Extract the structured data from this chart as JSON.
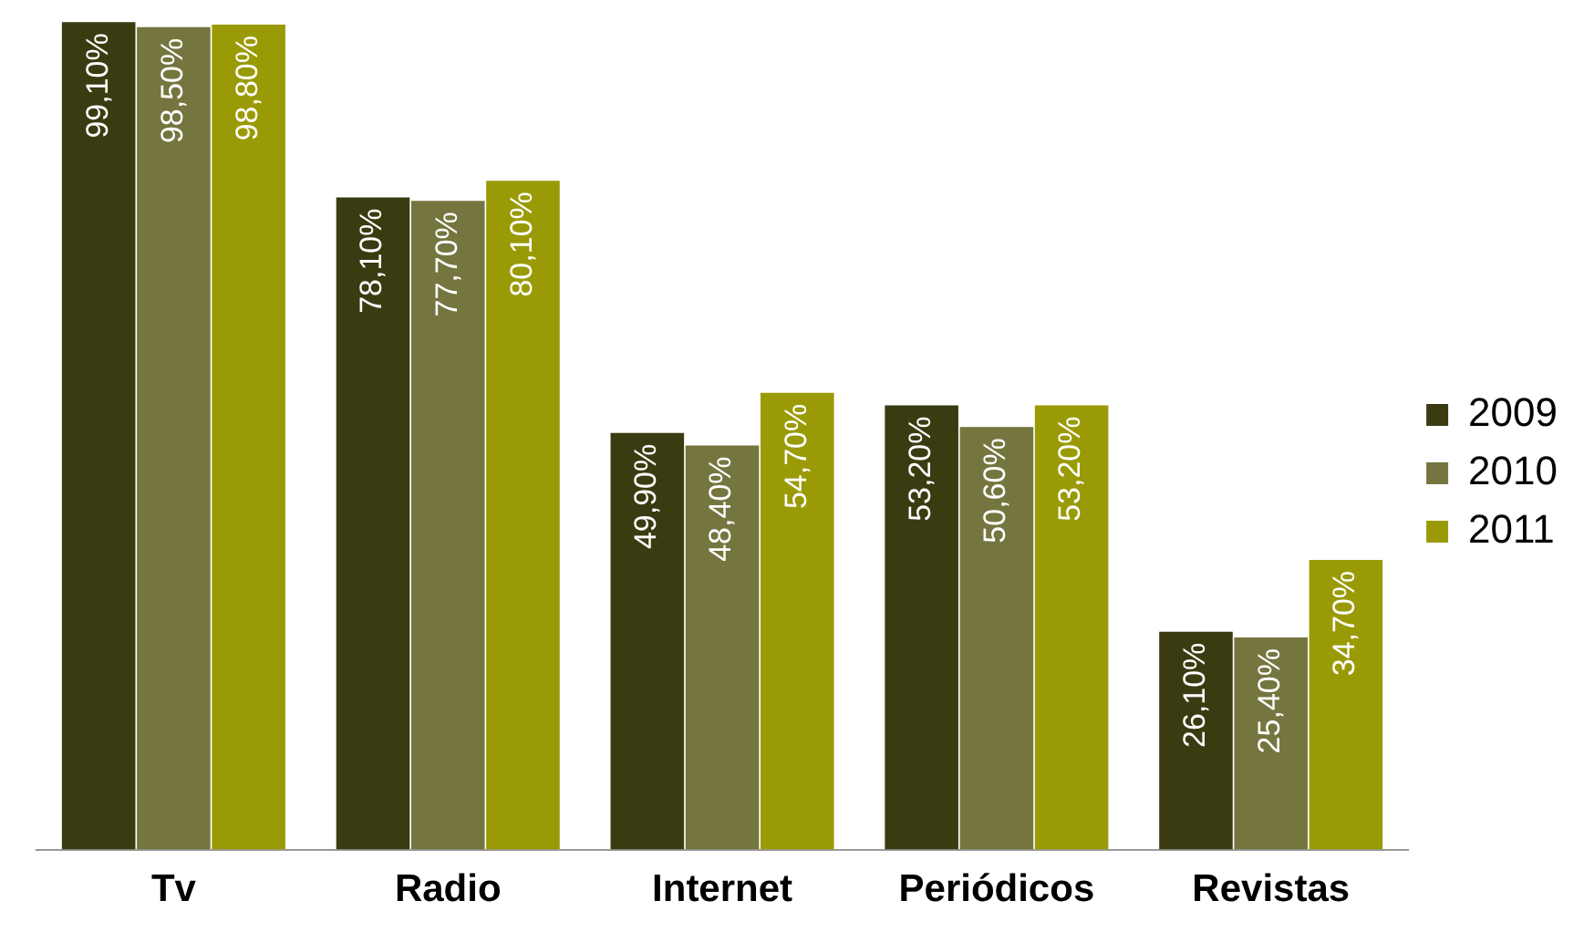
{
  "chart_data": {
    "type": "bar",
    "categories": [
      "Tv",
      "Radio",
      "Internet",
      "Periódicos",
      "Revistas"
    ],
    "series": [
      {
        "name": "2009",
        "color": "#3b3b12",
        "values": [
          99.1,
          78.1,
          49.9,
          53.2,
          26.1
        ],
        "value_labels": [
          "99,10%",
          "78,10%",
          "49,90%",
          "53,20%",
          "26,10%"
        ]
      },
      {
        "name": "2010",
        "color": "#75753f",
        "values": [
          98.5,
          77.7,
          48.4,
          50.6,
          25.4
        ],
        "value_labels": [
          "98,50%",
          "77,70%",
          "48,40%",
          "50,60%",
          "25,40%"
        ]
      },
      {
        "name": "2011",
        "color": "#9a9a06",
        "values": [
          98.8,
          80.1,
          54.7,
          53.2,
          34.7
        ],
        "value_labels": [
          "98,80%",
          "80,10%",
          "54,70%",
          "53,20%",
          "34,70%"
        ]
      }
    ],
    "legend": "right",
    "grid": false,
    "tick_labels": "x"
  }
}
